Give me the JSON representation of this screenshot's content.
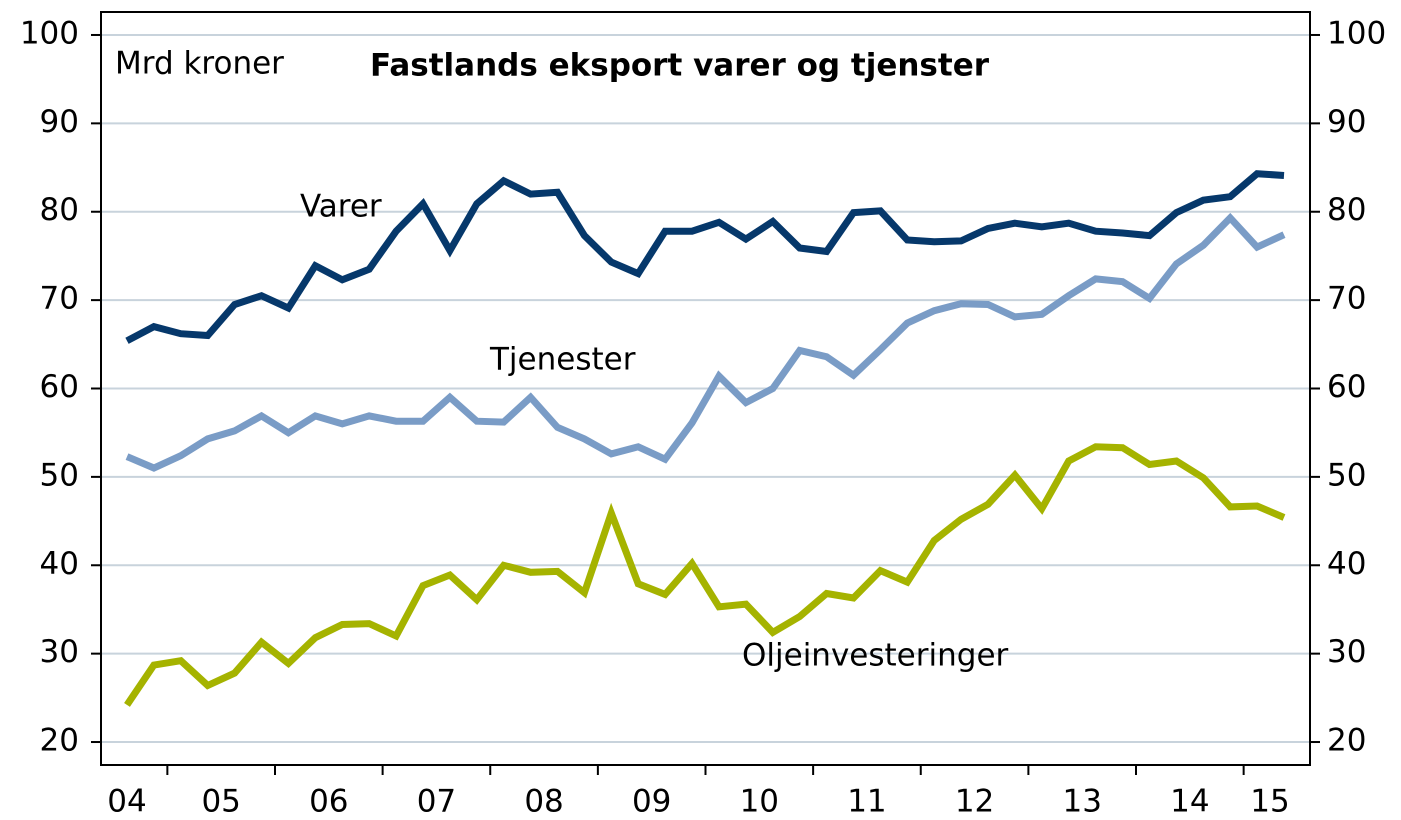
{
  "chart_data": {
    "type": "line",
    "title": "Fastlands eksport varer og tjenster",
    "y_label": "Mrd kroner",
    "year_labels": [
      "04",
      "05",
      "06",
      "07",
      "08",
      "09",
      "10",
      "11",
      "12",
      "13",
      "14",
      "15"
    ],
    "series": [
      {
        "name": "Varer",
        "color": "#06386b",
        "values": [
          65.4,
          67.0,
          66.2,
          66.0,
          69.5,
          70.5,
          69.1,
          73.9,
          72.3,
          73.5,
          77.8,
          80.9,
          75.6,
          80.9,
          83.5,
          82.0,
          82.2,
          77.3,
          74.3,
          73.0,
          77.8,
          77.8,
          78.8,
          76.9,
          78.9,
          75.9,
          75.5,
          79.9,
          80.1,
          76.8,
          76.6,
          76.7,
          78.1,
          78.7,
          78.3,
          78.7,
          77.8,
          77.6,
          77.3,
          79.9,
          81.3,
          81.7,
          84.3,
          84.1
        ]
      },
      {
        "name": "Tjenester",
        "color": "#7a9cc6",
        "values": [
          52.3,
          51.0,
          52.4,
          54.3,
          55.2,
          56.9,
          55.0,
          56.9,
          56.0,
          56.9,
          56.3,
          56.3,
          59.0,
          56.3,
          56.2,
          59.0,
          55.6,
          54.3,
          52.6,
          53.4,
          52.0,
          56.1,
          61.4,
          58.4,
          60.0,
          64.3,
          63.6,
          61.5,
          64.4,
          67.4,
          68.8,
          69.6,
          69.5,
          68.1,
          68.4,
          70.5,
          72.4,
          72.1,
          70.2,
          74.1,
          76.2,
          79.3,
          76.0,
          77.4
        ]
      },
      {
        "name": "Oljeinvesteringer",
        "color": "#a5b300",
        "values": [
          24.2,
          28.7,
          29.2,
          26.4,
          27.8,
          31.3,
          28.9,
          31.8,
          33.3,
          33.4,
          32.0,
          37.7,
          38.9,
          36.1,
          40.0,
          39.2,
          39.3,
          36.9,
          45.9,
          37.9,
          36.7,
          40.2,
          35.3,
          35.6,
          32.4,
          34.2,
          36.8,
          36.3,
          39.4,
          38.1,
          42.8,
          45.2,
          46.9,
          50.2,
          46.4,
          51.8,
          53.4,
          53.3,
          51.4,
          51.8,
          49.9,
          46.6,
          46.7,
          45.4
        ]
      }
    ],
    "ylim": [
      17.4,
      102.6
    ],
    "yticks": [
      20,
      30,
      40,
      50,
      60,
      70,
      80,
      90,
      100
    ],
    "y2lim": [
      17.4,
      102.6
    ],
    "y2ticks": [
      20,
      30,
      40,
      50,
      60,
      70,
      80,
      90,
      100
    ],
    "grid": true
  }
}
